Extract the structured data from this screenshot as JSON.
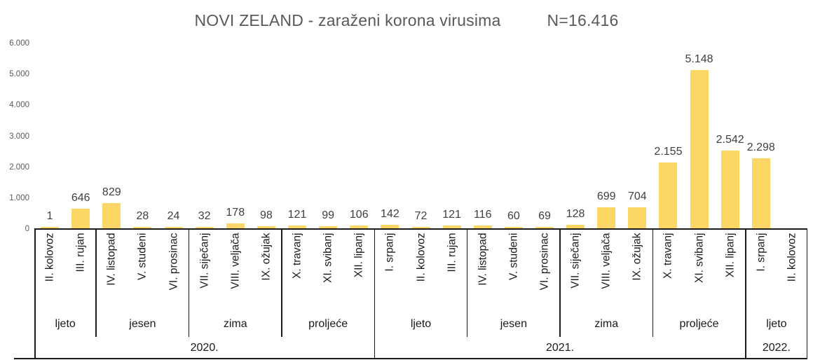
{
  "chart_data": {
    "type": "bar",
    "title": "NOVI ZELAND - zaraženi korona virusima",
    "n_total_label": "N=16.416",
    "xlabel": "",
    "ylabel": "",
    "ylim": [
      0,
      6000
    ],
    "grid": false,
    "legend": false,
    "bar_color": "#FCD765",
    "yticks": [
      0,
      1000,
      2000,
      3000,
      4000,
      5000,
      6000
    ],
    "ytick_labels": [
      "0",
      "1.000",
      "2.000",
      "3.000",
      "4.000",
      "5.000",
      "6.000"
    ],
    "groups": [
      {
        "year": "2020.",
        "seasons": [
          {
            "season": "ljeto",
            "months": [
              {
                "month": "II. kolovoz",
                "value": 1,
                "label": "1"
              },
              {
                "month": "III. rujan",
                "value": 646,
                "label": "646"
              }
            ]
          },
          {
            "season": "jesen",
            "months": [
              {
                "month": "IV. listopad",
                "value": 829,
                "label": "829"
              },
              {
                "month": "V. studeni",
                "value": 28,
                "label": "28"
              },
              {
                "month": "VI. prosinac",
                "value": 24,
                "label": "24"
              }
            ]
          },
          {
            "season": "zima",
            "months": [
              {
                "month": "VII. siječanj",
                "value": 32,
                "label": "32"
              },
              {
                "month": "VIII. veljača",
                "value": 178,
                "label": "178"
              },
              {
                "month": "IX. ožujak",
                "value": 98,
                "label": "98"
              }
            ]
          },
          {
            "season": "proljeće",
            "months": [
              {
                "month": "X. travanj",
                "value": 121,
                "label": "121"
              },
              {
                "month": "XI. svibanj",
                "value": 99,
                "label": "99"
              },
              {
                "month": "XII. lipanj",
                "value": 106,
                "label": "106"
              }
            ]
          }
        ]
      },
      {
        "year": "2021.",
        "seasons": [
          {
            "season": "ljeto",
            "months": [
              {
                "month": "I. srpanj",
                "value": 142,
                "label": "142"
              },
              {
                "month": "II. kolovoz",
                "value": 72,
                "label": "72"
              },
              {
                "month": "III. rujan",
                "value": 121,
                "label": "121"
              }
            ]
          },
          {
            "season": "jesen",
            "months": [
              {
                "month": "IV. listopad",
                "value": 116,
                "label": "116"
              },
              {
                "month": "V. studeni",
                "value": 60,
                "label": "60"
              },
              {
                "month": "VI. prosinac",
                "value": 69,
                "label": "69"
              }
            ]
          },
          {
            "season": "zima",
            "months": [
              {
                "month": "VII. siječanj",
                "value": 128,
                "label": "128"
              },
              {
                "month": "VIII. veljača",
                "value": 699,
                "label": "699"
              },
              {
                "month": "IX. ožujak",
                "value": 704,
                "label": "704"
              }
            ]
          },
          {
            "season": "proljeće",
            "months": [
              {
                "month": "X. travanj",
                "value": 2155,
                "label": "2.155"
              },
              {
                "month": "XI. svibanj",
                "value": 5148,
                "label": "5.148"
              },
              {
                "month": "XII. lipanj",
                "value": 2542,
                "label": "2.542"
              }
            ]
          }
        ]
      },
      {
        "year": "2022.",
        "seasons": [
          {
            "season": "ljeto",
            "months": [
              {
                "month": "I. srpanj",
                "value": 2298,
                "label": "2.298"
              },
              {
                "month": "II. kolovoz",
                "value": null,
                "label": ""
              }
            ]
          }
        ]
      }
    ]
  }
}
